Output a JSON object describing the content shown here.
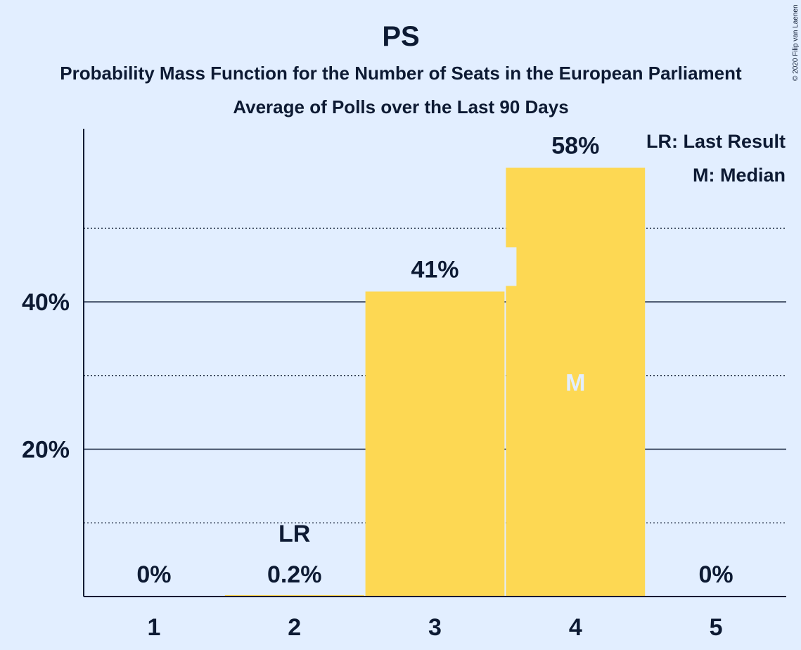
{
  "chart_data": {
    "type": "bar",
    "title": "PS",
    "subtitle": "Probability Mass Function for the Number of Seats in the European Parliament",
    "subtitle2": "Average of Polls over the Last 90 Days",
    "copyright": "© 2020 Filip van Laenen",
    "categories": [
      "1",
      "2",
      "3",
      "4",
      "5"
    ],
    "values": [
      0,
      0.2,
      41.4,
      58.2,
      0
    ],
    "value_labels": [
      "0%",
      "0.2%",
      "41%",
      "58%",
      "0%"
    ],
    "ylim": [
      0,
      63.5
    ],
    "y_ticks": [
      {
        "value": 20,
        "label": "20%"
      },
      {
        "value": 40,
        "label": "40%"
      }
    ],
    "y_minor_gridlines": [
      10,
      30,
      50
    ],
    "last_result_index": 1,
    "last_result_marker": "LR",
    "median_index": 3,
    "median_marker": "M",
    "legend": [
      "LR: Last Result",
      "M: Median"
    ],
    "legend_position": "top-right",
    "colors": {
      "background": "#e2eeff",
      "bar": "#fdd853",
      "text": "#0d1a33",
      "median_text": "#e2eeff"
    }
  }
}
